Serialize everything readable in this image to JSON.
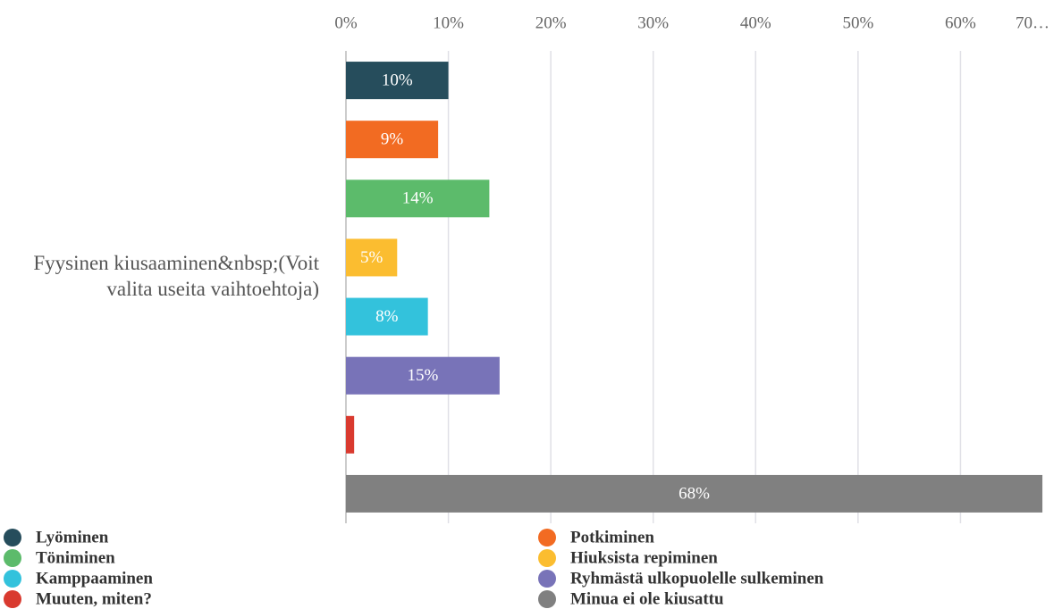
{
  "chart_data": {
    "type": "bar",
    "orientation": "horizontal",
    "categories": [
      "Fyysinen kiusaaminen&nbsp;(Voit valita useita vaihtoehtoja)"
    ],
    "series": [
      {
        "name": "Lyöminen",
        "color": "#264d5c",
        "values": [
          10
        ],
        "value_labels": [
          "10%"
        ]
      },
      {
        "name": "Potkiminen",
        "color": "#f26b22",
        "values": [
          9
        ],
        "value_labels": [
          "9%"
        ]
      },
      {
        "name": "Töniminen",
        "color": "#5cbb6b",
        "values": [
          14
        ],
        "value_labels": [
          "14%"
        ]
      },
      {
        "name": "Hiuksista repiminen",
        "color": "#fbbd30",
        "values": [
          5
        ],
        "value_labels": [
          "5%"
        ]
      },
      {
        "name": "Kamppaaminen",
        "color": "#33c2dc",
        "values": [
          8
        ],
        "value_labels": [
          "8%"
        ]
      },
      {
        "name": "Ryhmästä ulkopuolelle sulkeminen",
        "color": "#7873b8",
        "values": [
          15
        ],
        "value_labels": [
          "15%"
        ]
      },
      {
        "name": "Muuten, miten?",
        "color": "#d93a2f",
        "values": [
          0.8
        ]
      },
      {
        "name": "Minua ei ole kiusattu",
        "color": "#808080",
        "values": [
          68
        ],
        "value_labels": [
          "68%"
        ]
      }
    ],
    "xlim": [
      0,
      70
    ],
    "xticks": [
      {
        "value": 0,
        "label": "0%"
      },
      {
        "value": 10,
        "label": "10%"
      },
      {
        "value": 20,
        "label": "20%"
      },
      {
        "value": 30,
        "label": "30%"
      },
      {
        "value": 40,
        "label": "40%"
      },
      {
        "value": 50,
        "label": "50%"
      },
      {
        "value": 60,
        "label": "60%"
      },
      {
        "value": 70,
        "label": "70…"
      }
    ],
    "grid": true,
    "legend": "bottom"
  }
}
